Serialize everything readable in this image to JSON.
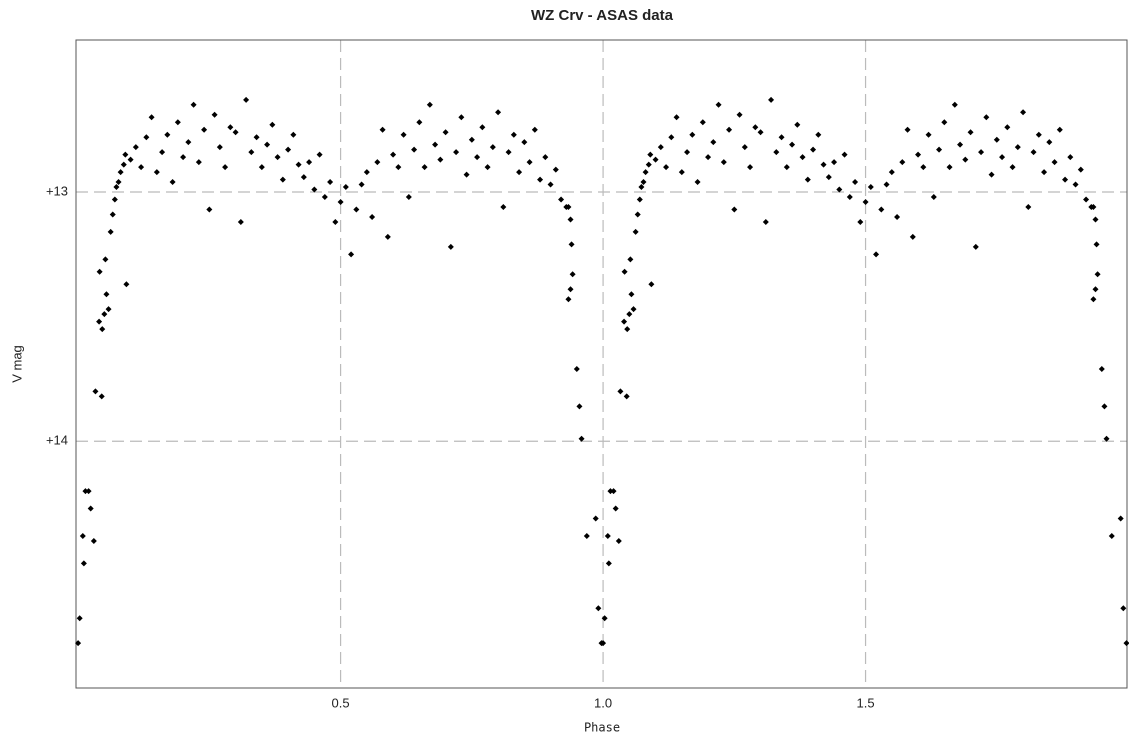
{
  "chart_data": {
    "type": "scatter",
    "title": "WZ Crv - ASAS data",
    "x_label": "Phase",
    "y_label": "V mag",
    "color": "#000000",
    "grid": true,
    "xlim": [
      -0.004,
      1.998
    ],
    "ylim": [
      14.99,
      12.39
    ],
    "xticks": [
      0.5,
      {
        "value": 1.0,
        "label": "1.0"
      },
      1.5
    ],
    "yticks": [
      {
        "value": 13,
        "label": "+13"
      },
      {
        "value": 14,
        "label": "+14"
      }
    ],
    "x": [
      0,
      0.003,
      0.009,
      0.011,
      0.014,
      0.02,
      0.024,
      0.03,
      0.033,
      0.04,
      0.045,
      0.046,
      0.05,
      0.041,
      0.054,
      0.052,
      0.058,
      0.062,
      0.066,
      0.07,
      0.073,
      0.077,
      0.081,
      0.087,
      0.092,
      0.09,
      0.1,
      0.11,
      0.12,
      0.13,
      0.14,
      0.15,
      0.16,
      0.17,
      0.18,
      0.19,
      0.2,
      0.21,
      0.22,
      0.23,
      0.24,
      0.25,
      0.26,
      0.27,
      0.28,
      0.29,
      0.3,
      0.31,
      0.32,
      0.33,
      0.34,
      0.35,
      0.36,
      0.37,
      0.38,
      0.39,
      0.4,
      0.41,
      0.42,
      0.43,
      0.44,
      0.45,
      0.46,
      0.47,
      0.48,
      0.49,
      0.5,
      0.51,
      0.52,
      0.53,
      0.54,
      0.55,
      0.56,
      0.57,
      0.58,
      0.59,
      0.6,
      0.61,
      0.62,
      0.63,
      0.64,
      0.65,
      0.66,
      0.67,
      0.68,
      0.69,
      0.7,
      0.71,
      0.72,
      0.73,
      0.74,
      0.75,
      0.76,
      0.77,
      0.78,
      0.79,
      0.8,
      0.81,
      0.82,
      0.83,
      0.84,
      0.85,
      0.86,
      0.87,
      0.88,
      0.89,
      0.9,
      0.91,
      0.92,
      0.93,
      0.934,
      0.938,
      0.94,
      0.938,
      0.934,
      0.942,
      0.95,
      0.955,
      0.959,
      0.969,
      0.986,
      0.991,
      0.997,
      1,
      1.003,
      1.009,
      1.011,
      1.014,
      1.02,
      1.024,
      1.03,
      1.033,
      1.04,
      1.045,
      1.046,
      1.05,
      1.041,
      1.054,
      1.052,
      1.058,
      1.062,
      1.066,
      1.07,
      1.073,
      1.077,
      1.081,
      1.087,
      1.092,
      1.09,
      1.1,
      1.11,
      1.12,
      1.13,
      1.14,
      1.15,
      1.16,
      1.17,
      1.18,
      1.19,
      1.2,
      1.21,
      1.22,
      1.23,
      1.24,
      1.25,
      1.26,
      1.27,
      1.28,
      1.29,
      1.3,
      1.31,
      1.32,
      1.33,
      1.34,
      1.35,
      1.36,
      1.37,
      1.38,
      1.39,
      1.4,
      1.41,
      1.42,
      1.43,
      1.44,
      1.45,
      1.46,
      1.47,
      1.48,
      1.49,
      1.5,
      1.51,
      1.52,
      1.53,
      1.54,
      1.55,
      1.56,
      1.57,
      1.58,
      1.59,
      1.6,
      1.61,
      1.62,
      1.63,
      1.64,
      1.65,
      1.66,
      1.67,
      1.68,
      1.69,
      1.7,
      1.71,
      1.72,
      1.73,
      1.74,
      1.75,
      1.76,
      1.77,
      1.78,
      1.79,
      1.8,
      1.81,
      1.82,
      1.83,
      1.84,
      1.85,
      1.86,
      1.87,
      1.88,
      1.89,
      1.9,
      1.91,
      1.92,
      1.93,
      1.934,
      1.938,
      1.94,
      1.938,
      1.934,
      1.942,
      1.95,
      1.955,
      1.959,
      1.969,
      1.986,
      1.991,
      1.997
    ],
    "y": [
      14.81,
      14.71,
      14.38,
      14.49,
      14.2,
      14.2,
      14.27,
      14.4,
      13.8,
      13.52,
      13.82,
      13.55,
      13.49,
      13.32,
      13.41,
      13.27,
      13.47,
      13.16,
      13.09,
      13.03,
      12.98,
      12.96,
      12.92,
      12.89,
      13.37,
      12.85,
      12.87,
      12.82,
      12.9,
      12.78,
      12.7,
      12.92,
      12.84,
      12.77,
      12.96,
      12.72,
      12.86,
      12.8,
      12.65,
      12.88,
      12.75,
      13.07,
      12.69,
      12.82,
      12.9,
      12.74,
      12.76,
      13.12,
      12.63,
      12.84,
      12.78,
      12.9,
      12.81,
      12.73,
      12.86,
      12.95,
      12.83,
      12.77,
      12.89,
      12.94,
      12.88,
      12.99,
      12.85,
      13.02,
      12.96,
      13.12,
      13.04,
      12.98,
      13.25,
      13.07,
      12.97,
      12.92,
      13.1,
      12.88,
      12.75,
      13.18,
      12.85,
      12.9,
      12.77,
      13.02,
      12.83,
      12.72,
      12.9,
      12.65,
      12.81,
      12.87,
      12.76,
      13.22,
      12.84,
      12.7,
      12.93,
      12.79,
      12.86,
      12.74,
      12.9,
      12.82,
      12.68,
      13.06,
      12.84,
      12.77,
      12.92,
      12.8,
      12.88,
      12.75,
      12.95,
      12.86,
      12.97,
      12.91,
      13.03,
      13.06,
      13.06,
      13.11,
      13.21,
      13.39,
      13.43,
      13.33,
      13.71,
      13.86,
      13.99,
      14.38,
      14.31,
      14.67,
      14.81,
      14.81,
      14.71,
      14.38,
      14.49,
      14.2,
      14.2,
      14.27,
      14.4,
      13.8,
      13.52,
      13.82,
      13.55,
      13.49,
      13.32,
      13.41,
      13.27,
      13.47,
      13.16,
      13.09,
      13.03,
      12.98,
      12.96,
      12.92,
      12.89,
      13.37,
      12.85,
      12.87,
      12.82,
      12.9,
      12.78,
      12.7,
      12.92,
      12.84,
      12.77,
      12.96,
      12.72,
      12.86,
      12.8,
      12.65,
      12.88,
      12.75,
      13.07,
      12.69,
      12.82,
      12.9,
      12.74,
      12.76,
      13.12,
      12.63,
      12.84,
      12.78,
      12.9,
      12.81,
      12.73,
      12.86,
      12.95,
      12.83,
      12.77,
      12.89,
      12.94,
      12.88,
      12.99,
      12.85,
      13.02,
      12.96,
      13.12,
      13.04,
      12.98,
      13.25,
      13.07,
      12.97,
      12.92,
      13.1,
      12.88,
      12.75,
      13.18,
      12.85,
      12.9,
      12.77,
      13.02,
      12.83,
      12.72,
      12.9,
      12.65,
      12.81,
      12.87,
      12.76,
      13.22,
      12.84,
      12.7,
      12.93,
      12.79,
      12.86,
      12.74,
      12.9,
      12.82,
      12.68,
      13.06,
      12.84,
      12.77,
      12.92,
      12.8,
      12.88,
      12.75,
      12.95,
      12.86,
      12.97,
      12.91,
      13.03,
      13.06,
      13.06,
      13.11,
      13.21,
      13.39,
      13.43,
      13.33,
      13.71,
      13.86,
      13.99,
      14.38,
      14.31,
      14.67,
      14.81
    ]
  }
}
